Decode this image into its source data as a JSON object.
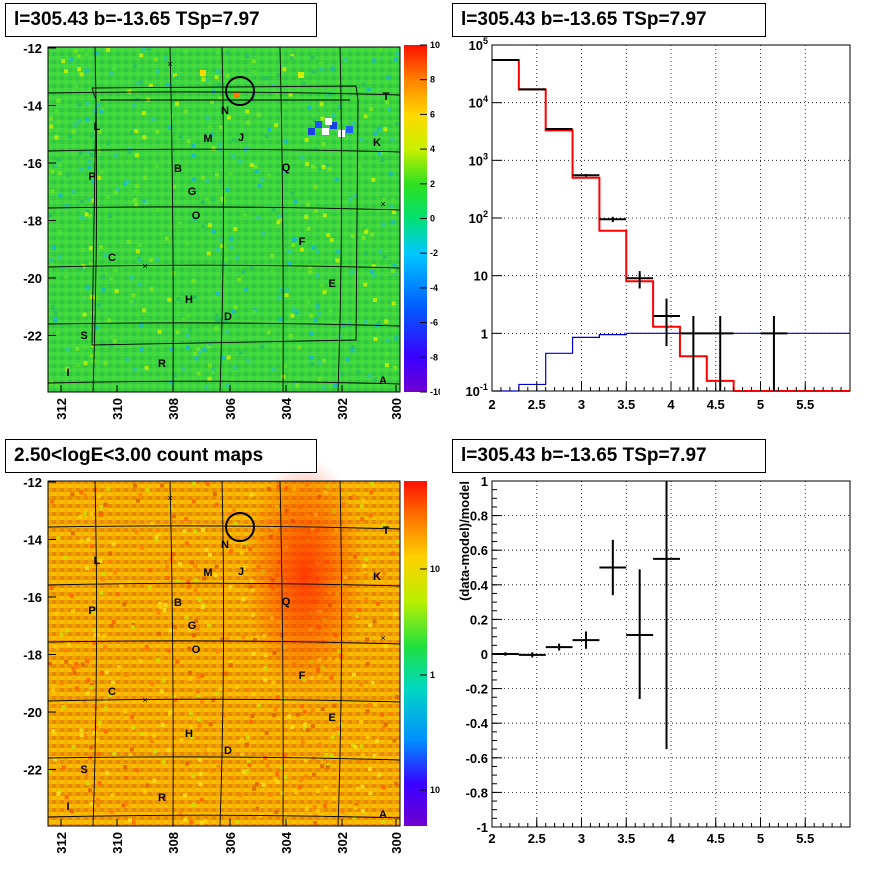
{
  "titles": {
    "top_left": "l=305.43 b=-13.65 TSp=7.97",
    "top_right": "l=305.43 b=-13.65 TSp=7.97",
    "bottom_left": "2.50<logE<3.00 count maps",
    "bottom_right": "l=305.43 b=-13.65 TSp=7.97"
  },
  "colors": {
    "data_hist": "#000000",
    "model_red": "#ff0000",
    "model_blue": "#0000cc",
    "frame": "#000000",
    "grid": "#000000"
  },
  "chart_data": [
    {
      "id": "tsmap",
      "type": "heatmap",
      "title": "l=305.43 b=-13.65 TSp=7.97",
      "xticks": [
        "312",
        "310",
        "308",
        "306",
        "304",
        "302",
        "300"
      ],
      "yticks": [
        "-12",
        "-14",
        "-16",
        "-18",
        "-20",
        "-22"
      ],
      "colorbar_ticks": [
        "10",
        "8",
        "6",
        "4",
        "2",
        "0",
        "-2",
        "-4",
        "-6",
        "-8",
        "-10"
      ],
      "zlim": [
        -10,
        10
      ],
      "labels": [
        "T",
        "N",
        "J",
        "M",
        "L",
        "K",
        "Q",
        "B",
        "P",
        "G",
        "O",
        "F",
        "C",
        "E",
        "H",
        "D",
        "S",
        "R",
        "I",
        "A"
      ]
    },
    {
      "id": "countmap",
      "type": "heatmap",
      "title": "2.50<logE<3.00 count maps",
      "xticks": [
        "312",
        "310",
        "308",
        "306",
        "304",
        "302",
        "300"
      ],
      "yticks": [
        "-12",
        "-14",
        "-16",
        "-18",
        "-20",
        "-22"
      ],
      "colorbar_ticks": [
        "10",
        "1",
        "10-1"
      ],
      "zscale": "log",
      "labels": [
        "T",
        "N",
        "J",
        "M",
        "L",
        "K",
        "Q",
        "B",
        "P",
        "G",
        "O",
        "F",
        "C",
        "E",
        "H",
        "D",
        "S",
        "R",
        "I",
        "A"
      ]
    },
    {
      "id": "spectrum",
      "type": "line",
      "title": "l=305.43 b=-13.65 TSp=7.97",
      "xlim": [
        2,
        6
      ],
      "ylim": [
        0.1,
        100000
      ],
      "yscale": "log",
      "xticks": [
        "2",
        "2.5",
        "3",
        "3.5",
        "4",
        "4.5",
        "5",
        "5.5"
      ],
      "yticks": [
        "10-1",
        "1",
        "10",
        "102",
        "103",
        "104",
        "105"
      ],
      "grid": true,
      "series": [
        {
          "color": "red",
          "style": "step",
          "edges": [
            2.0,
            2.3,
            2.6,
            2.9,
            3.2,
            3.5,
            3.8,
            4.1,
            4.4,
            4.7,
            6.0
          ],
          "values": [
            55000,
            17000,
            3300,
            500,
            60,
            8,
            1.3,
            0.4,
            0.15,
            0.1
          ]
        },
        {
          "color": "blue",
          "style": "step",
          "edges": [
            2.0,
            2.3,
            2.6,
            2.9,
            3.2,
            3.5,
            3.8,
            4.1,
            4.4,
            4.7,
            6.0
          ],
          "values": [
            0.1,
            0.13,
            0.45,
            0.85,
            0.95,
            1.0,
            1.0,
            1.0,
            1.0,
            1.0
          ]
        },
        {
          "color": "black",
          "style": "errorbar",
          "points": [
            {
              "x": 2.15,
              "y": 55000,
              "xerr": 0.15,
              "ylo": 54000,
              "yhi": 56000
            },
            {
              "x": 2.45,
              "y": 17000,
              "xerr": 0.15,
              "ylo": 16800,
              "yhi": 17200
            },
            {
              "x": 2.75,
              "y": 3500,
              "xerr": 0.15,
              "ylo": 3400,
              "yhi": 3600
            },
            {
              "x": 3.05,
              "y": 550,
              "xerr": 0.15,
              "ylo": 520,
              "yhi": 580
            },
            {
              "x": 3.35,
              "y": 95,
              "xerr": 0.15,
              "ylo": 85,
              "yhi": 105
            },
            {
              "x": 3.65,
              "y": 9,
              "xerr": 0.15,
              "ylo": 6,
              "yhi": 12
            },
            {
              "x": 3.95,
              "y": 2,
              "xerr": 0.15,
              "ylo": 0.6,
              "yhi": 4
            },
            {
              "x": 4.25,
              "y": 1,
              "xerr": 0.15,
              "ylo": 0.1,
              "yhi": 2
            },
            {
              "x": 4.55,
              "y": 1,
              "xerr": 0.15,
              "ylo": 0.1,
              "yhi": 2
            },
            {
              "x": 5.15,
              "y": 1,
              "xerr": 0.15,
              "ylo": 0.1,
              "yhi": 2
            }
          ]
        }
      ]
    },
    {
      "id": "residuals",
      "type": "scatter",
      "title": "l=305.43 b=-13.65 TSp=7.97",
      "ylabel": "(data-model)/model",
      "xlim": [
        2,
        6
      ],
      "ylim": [
        -1,
        1
      ],
      "xticks": [
        "2",
        "2.5",
        "3",
        "3.5",
        "4",
        "4.5",
        "5",
        "5.5"
      ],
      "yticks": [
        "-1",
        "-0.8",
        "-0.6",
        "-0.4",
        "-0.2",
        "0",
        "0.2",
        "0.4",
        "0.6",
        "0.8",
        "1"
      ],
      "grid": true,
      "points": [
        {
          "x": 2.15,
          "y": 0.0,
          "xerr": 0.15,
          "ylo": -0.01,
          "yhi": 0.01
        },
        {
          "x": 2.45,
          "y": -0.005,
          "xerr": 0.15,
          "ylo": -0.02,
          "yhi": 0.01
        },
        {
          "x": 2.75,
          "y": 0.04,
          "xerr": 0.15,
          "ylo": 0.02,
          "yhi": 0.06
        },
        {
          "x": 3.05,
          "y": 0.08,
          "xerr": 0.15,
          "ylo": 0.03,
          "yhi": 0.13
        },
        {
          "x": 3.35,
          "y": 0.5,
          "xerr": 0.15,
          "ylo": 0.34,
          "yhi": 0.66
        },
        {
          "x": 3.65,
          "y": 0.11,
          "xerr": 0.15,
          "ylo": -0.26,
          "yhi": 0.49
        },
        {
          "x": 3.95,
          "y": 0.55,
          "xerr": 0.15,
          "ylo": -0.55,
          "yhi": 1.0
        }
      ]
    }
  ]
}
